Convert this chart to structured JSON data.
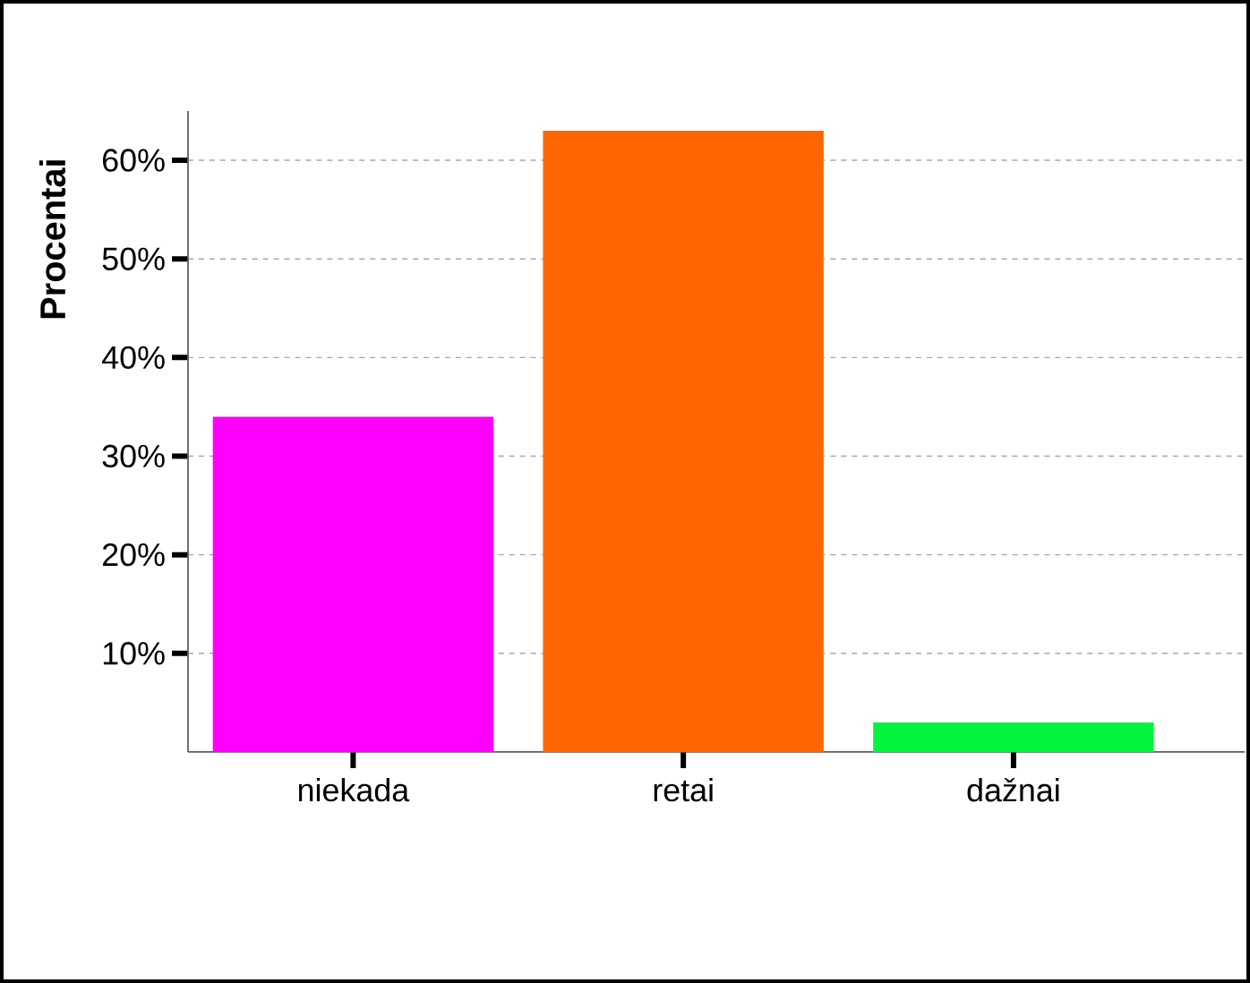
{
  "chart_data": {
    "type": "bar",
    "ylabel": "Procentai",
    "categories": [
      "niekada",
      "retai",
      "dažnai"
    ],
    "values": [
      34,
      63,
      3
    ],
    "colors": [
      "#ff00ff",
      "#ff6600",
      "#00f53a"
    ],
    "ylim": [
      0,
      65
    ],
    "yticks": [
      {
        "value": 10,
        "label": "10%"
      },
      {
        "value": 20,
        "label": "20%"
      },
      {
        "value": 30,
        "label": "30%"
      },
      {
        "value": 40,
        "label": "40%"
      },
      {
        "value": 50,
        "label": "50%"
      },
      {
        "value": 60,
        "label": "60%"
      }
    ],
    "grid": "y"
  }
}
